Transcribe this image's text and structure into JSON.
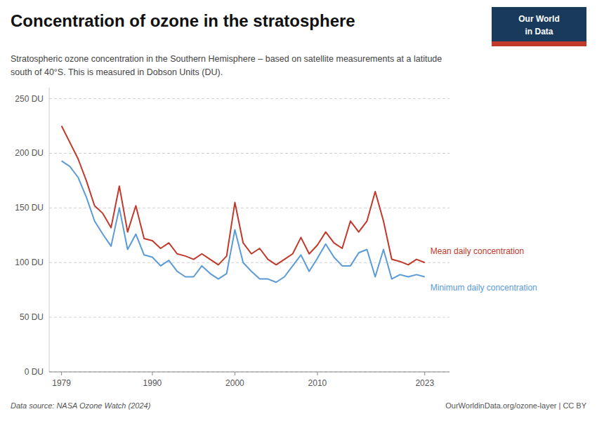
{
  "chart_data": {
    "type": "line",
    "title": "Concentration of ozone in the stratosphere",
    "subtitle": "Stratospheric ozone concentration in the Southern Hemisphere – based on satellite measurements at a latitude\nsouth of 40°S. This is measured in Dobson Units (DU).",
    "annotations": [
      "Data source: NASA Ozone Watch (2024)",
      "OurWorldinData.org/ozone-layer | CC BY",
      "Our World",
      "in Data"
    ],
    "x": [
      1979,
      1980,
      1981,
      1982,
      1983,
      1984,
      1985,
      1986,
      1987,
      1988,
      1989,
      1990,
      1991,
      1992,
      1993,
      1994,
      1995,
      1996,
      1997,
      1998,
      1999,
      2000,
      2001,
      2002,
      2003,
      2004,
      2005,
      2006,
      2007,
      2008,
      2009,
      2010,
      2011,
      2012,
      2013,
      2014,
      2015,
      2016,
      2017,
      2018,
      2019,
      2020,
      2021,
      2022,
      2023
    ],
    "series": [
      {
        "name": "Mean daily concentration",
        "color": "#c0392b",
        "values": [
          225,
          210,
          195,
          175,
          152,
          145,
          132,
          170,
          128,
          152,
          122,
          120,
          113,
          118,
          108,
          106,
          103,
          108,
          103,
          98,
          106,
          155,
          118,
          108,
          113,
          103,
          98,
          103,
          108,
          123,
          108,
          116,
          128,
          118,
          113,
          138,
          128,
          138,
          165,
          138,
          103,
          101,
          98,
          103,
          100
        ]
      },
      {
        "name": "Minimum daily concentration",
        "color": "#5b9bd5",
        "values": [
          193,
          188,
          178,
          160,
          138,
          126,
          115,
          150,
          112,
          126,
          107,
          105,
          97,
          102,
          92,
          87,
          87,
          97,
          90,
          85,
          90,
          130,
          100,
          92,
          85,
          85,
          82,
          87,
          97,
          107,
          92,
          104,
          117,
          105,
          97,
          97,
          109,
          112,
          87,
          112,
          85,
          89,
          87,
          89,
          87
        ]
      }
    ],
    "xlim": [
      1977.5,
      2026
    ],
    "xticks": [
      1979,
      1990,
      2000,
      2010,
      2023
    ],
    "ylim": [
      0,
      260
    ],
    "yticks": [
      {
        "value": 0,
        "label": "0 DU"
      },
      {
        "value": 50,
        "label": "50 DU"
      },
      {
        "value": 100,
        "label": "100 DU"
      },
      {
        "value": 150,
        "label": "150 DU"
      },
      {
        "value": 200,
        "label": "200 DU"
      },
      {
        "value": 250,
        "label": "250 DU"
      }
    ],
    "grid": true
  }
}
